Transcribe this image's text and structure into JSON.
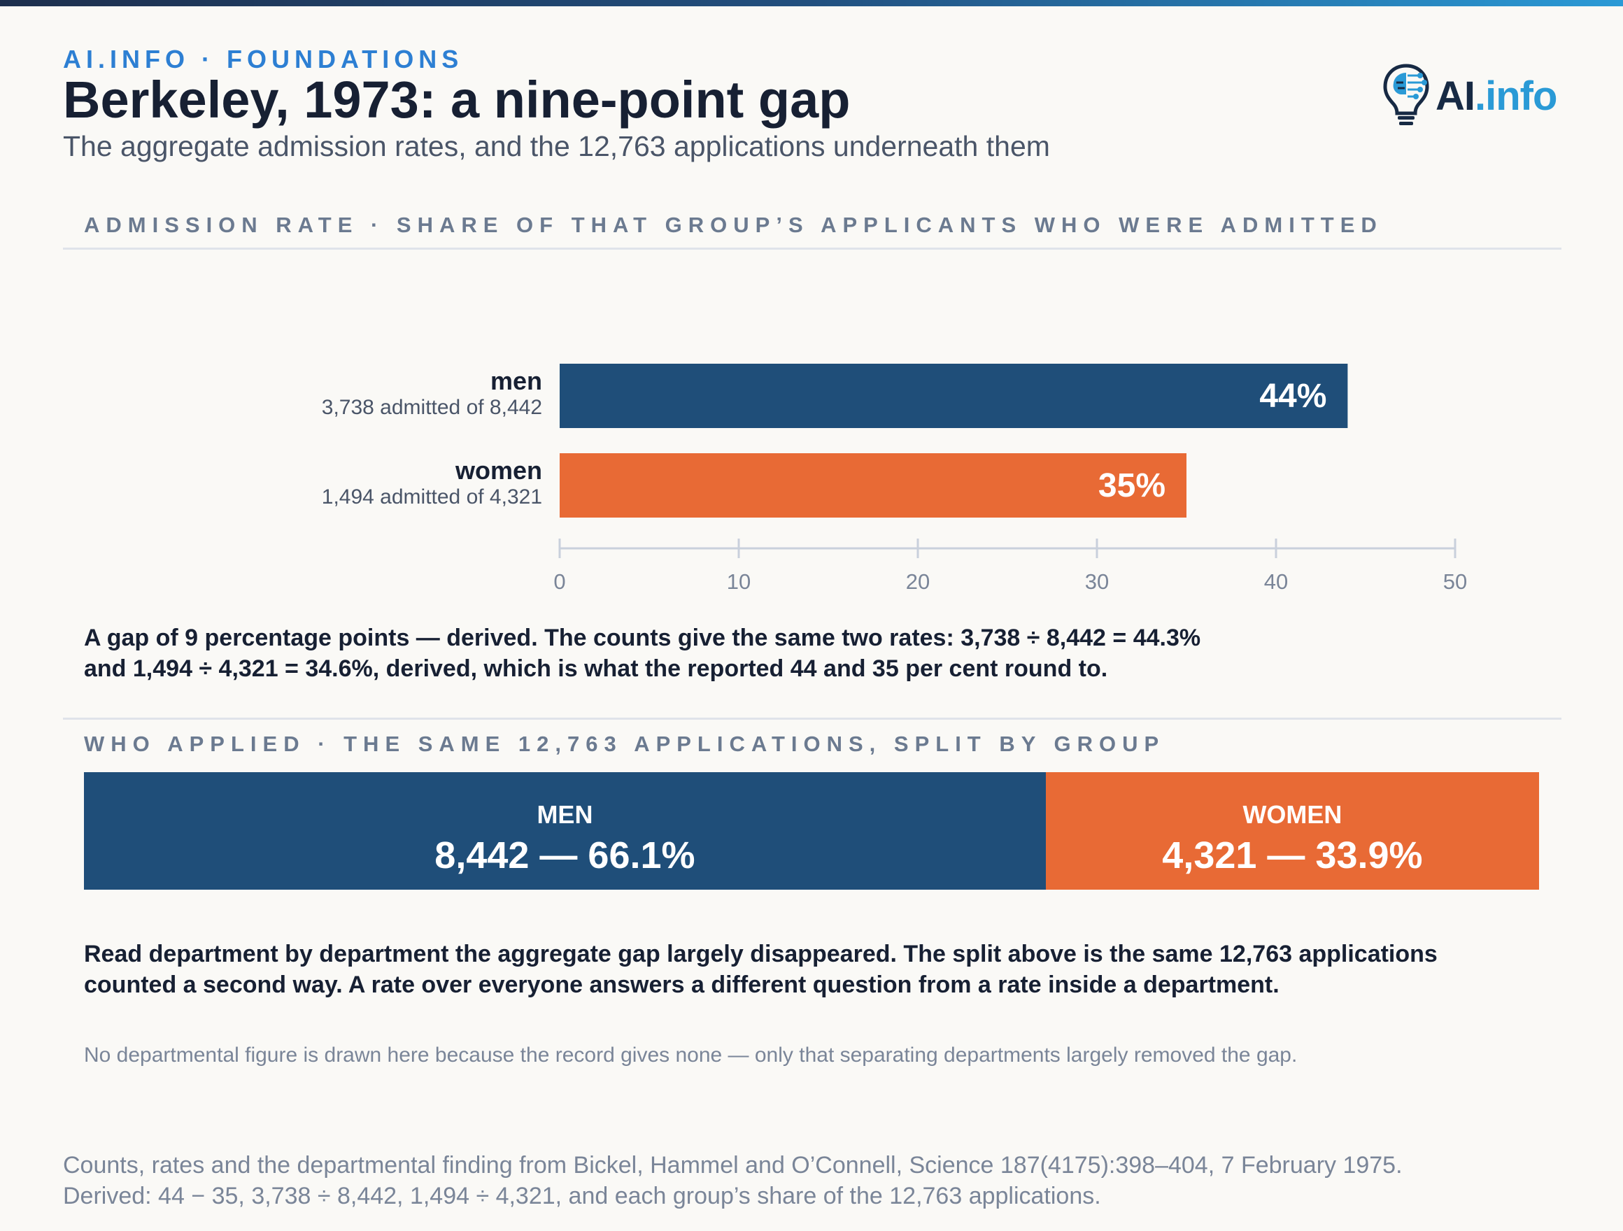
{
  "header": {
    "eyebrow": "AI.INFO · FOUNDATIONS",
    "title": "Berkeley, 1973: a nine-point gap",
    "subtitle": "The aggregate admission rates, and the 12,763 applications underneath them",
    "logo_main": "AI",
    "logo_accent": ".info"
  },
  "section1": {
    "label": "ADMISSION RATE · SHARE OF THAT GROUP’S APPLICANTS WHO WERE ADMITTED"
  },
  "chart_data": {
    "type": "bar",
    "orientation": "horizontal",
    "categories": [
      "men",
      "women"
    ],
    "sublabels": [
      "3,738 admitted of 8,442",
      "1,494 admitted of 4,321"
    ],
    "values": [
      44,
      35
    ],
    "value_labels": [
      "44%",
      "35%"
    ],
    "xlim": [
      0,
      50
    ],
    "xticks": [
      0,
      10,
      20,
      30,
      40,
      50
    ],
    "grid": false,
    "colors": [
      "#1f4e79",
      "#e86a35"
    ]
  },
  "note1": {
    "line1": "A gap of 9 percentage points — derived. The counts give the same two rates: 3,738 ÷ 8,442 = 44.3%",
    "line2": "and 1,494 ÷ 4,321 = 34.6%, derived, which is what the reported 44 and 35 per cent round to."
  },
  "section2": {
    "label": "WHO APPLIED · THE SAME 12,763 APPLICATIONS, SPLIT BY GROUP"
  },
  "split": {
    "segments": [
      {
        "name": "MEN",
        "value_label": "8,442 — 66.1%",
        "share": 0.661,
        "color": "#1f4e79"
      },
      {
        "name": "WOMEN",
        "value_label": "4,321 — 33.9%",
        "share": 0.339,
        "color": "#e86a35"
      }
    ]
  },
  "note2": {
    "line1": "Read department by department the aggregate gap largely disappeared. The split above is the same 12,763 applications",
    "line2": "counted a second way. A rate over everyone answers a different question from a rate inside a department."
  },
  "caveat": "No departmental figure is drawn here because the record gives none — only that separating departments largely removed the gap.",
  "footer": {
    "line1": "Counts, rates and the departmental finding from Bickel, Hammel and O’Connell, Science 187(4175):398–404, 7 February 1975.",
    "line2": "Derived: 44 − 35, 3,738 ÷ 8,442, 1,494 ÷ 4,321, and each group’s share of the 12,763 applications."
  }
}
